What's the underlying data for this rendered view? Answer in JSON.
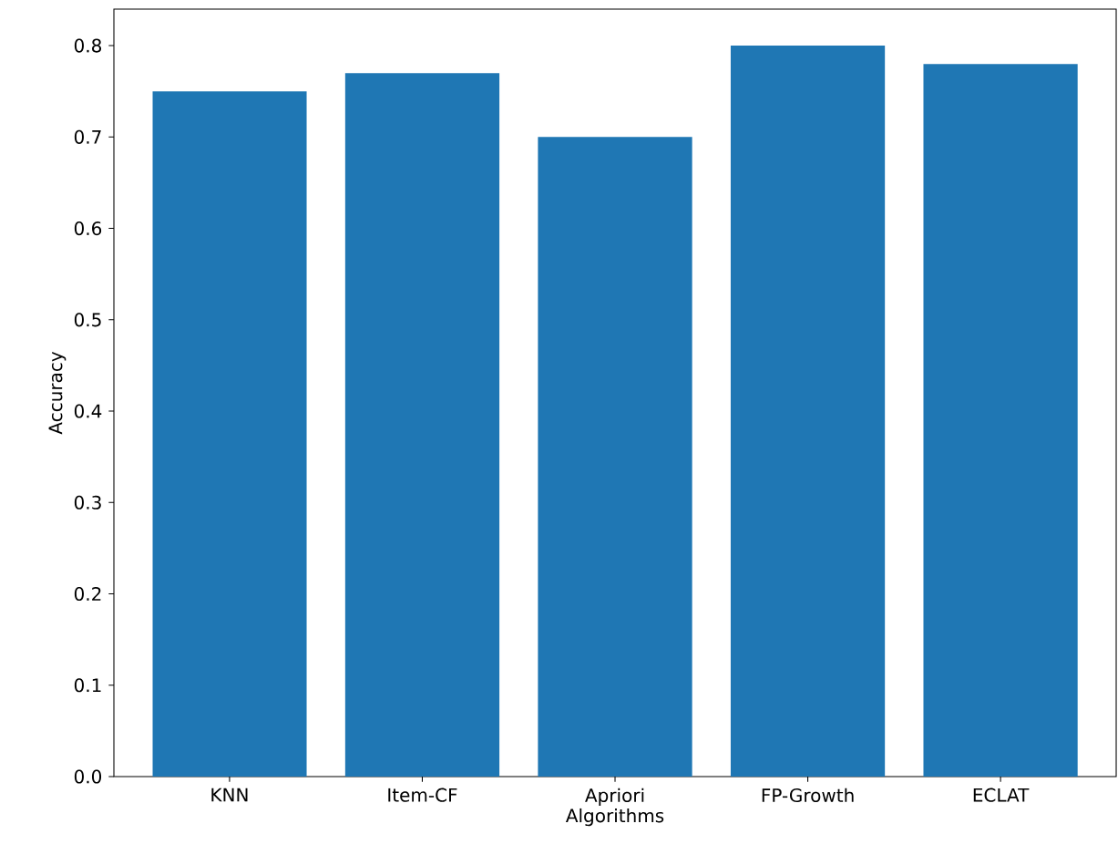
{
  "chart_data": {
    "type": "bar",
    "xlabel": "Algorithms",
    "ylabel": "Accuracy",
    "categories": [
      "KNN",
      "Item-CF",
      "Apriori",
      "FP-Growth",
      "ECLAT"
    ],
    "values": [
      0.75,
      0.77,
      0.7,
      0.8,
      0.78
    ],
    "color": "#1f77b4",
    "ylim": [
      0,
      0.84
    ],
    "yticks": [
      {
        "value": 0,
        "label": "0.0"
      },
      0.1,
      0.2,
      0.3,
      0.4,
      0.5,
      0.6,
      0.7,
      0.8
    ]
  }
}
